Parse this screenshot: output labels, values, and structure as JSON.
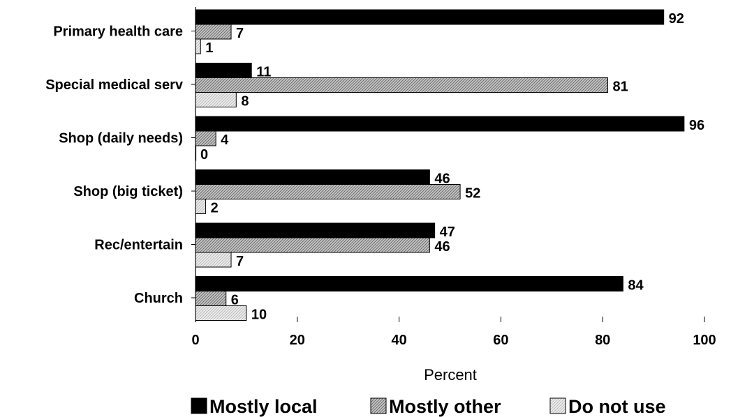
{
  "chart_data": {
    "type": "bar",
    "orientation": "horizontal",
    "categories": [
      "Primary health care",
      "Special medical serv",
      "Shop (daily needs)",
      "Shop (big ticket)",
      "Rec/entertain",
      "Church"
    ],
    "series": [
      {
        "name": "Mostly local",
        "values": [
          92,
          11,
          96,
          46,
          47,
          84
        ],
        "color": "#000000",
        "pattern": "solid"
      },
      {
        "name": "Mostly other",
        "values": [
          7,
          81,
          4,
          52,
          46,
          6
        ],
        "color": "#a0a0a0",
        "pattern": "diagonal-hatch"
      },
      {
        "name": "Do not use",
        "values": [
          1,
          8,
          0,
          2,
          7,
          10
        ],
        "color": "#d8d8d8",
        "pattern": "fine-hatch"
      }
    ],
    "xlabel": "Percent",
    "ylabel": "",
    "xlim": [
      0,
      100
    ],
    "xticks": [
      0,
      20,
      40,
      60,
      80,
      100
    ],
    "grid": false,
    "legend_position": "bottom"
  }
}
